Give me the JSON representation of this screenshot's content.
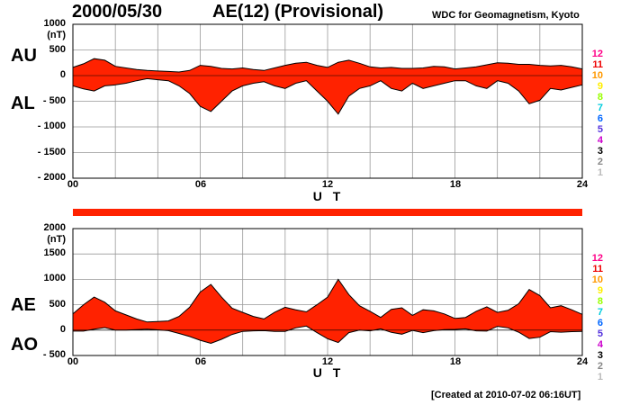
{
  "header": {
    "date": "2000/05/30",
    "title": "AE(12) (Provisional)",
    "source": "WDC for Geomagnetism, Kyoto"
  },
  "footer": {
    "created": "[Created at 2010-07-02 06:16UT]"
  },
  "colors": {
    "fill": "#ff2200",
    "grid": "#999999",
    "bar": "#ff2200",
    "station_counts": [
      "#ff0088",
      "#ee0000",
      "#ff9900",
      "#ffee00",
      "#99ff00",
      "#00ccdd",
      "#0066ff",
      "#5533dd",
      "#cc00cc",
      "#000000",
      "#888888",
      "#bbbbbb"
    ]
  },
  "station_counts": [
    "12",
    "11",
    "10",
    "9",
    "8",
    "7",
    "6",
    "5",
    "4",
    "3",
    "2",
    "1"
  ],
  "chart_data": [
    {
      "type": "area",
      "name": "AU/AL",
      "side_labels": [
        "AU",
        "AL"
      ],
      "unit": "(nT)",
      "ylim": [
        -2000,
        1000
      ],
      "yticks": [
        1000,
        500,
        0,
        -500,
        -1000,
        -1500,
        -2000
      ],
      "ytick_labels": [
        "1000",
        "500",
        "0",
        "- 500",
        "- 1000",
        "- 1500",
        "- 2000"
      ],
      "xlim": [
        0,
        24
      ],
      "xticks": [
        "00",
        "06",
        "12",
        "18",
        "24"
      ],
      "xlabel": "U T",
      "grid": true,
      "x": [
        0,
        0.5,
        1,
        1.5,
        2,
        2.5,
        3,
        3.5,
        4,
        4.5,
        5,
        5.5,
        6,
        6.5,
        7,
        7.5,
        8,
        8.5,
        9,
        9.5,
        10,
        10.5,
        11,
        11.5,
        12,
        12.5,
        13,
        13.5,
        14,
        14.5,
        15,
        15.5,
        16,
        16.5,
        17,
        17.5,
        18,
        18.5,
        19,
        19.5,
        20,
        20.5,
        21,
        21.5,
        22,
        22.5,
        23,
        23.5,
        24
      ],
      "series": [
        {
          "name": "AU",
          "values": [
            160,
            230,
            330,
            300,
            180,
            150,
            120,
            100,
            90,
            80,
            70,
            100,
            200,
            180,
            140,
            130,
            150,
            120,
            100,
            150,
            200,
            240,
            260,
            200,
            160,
            260,
            300,
            240,
            170,
            150,
            160,
            140,
            140,
            150,
            180,
            170,
            130,
            150,
            170,
            210,
            250,
            240,
            220,
            220,
            200,
            190,
            200,
            170,
            130
          ]
        },
        {
          "name": "AL",
          "values": [
            -200,
            -260,
            -300,
            -200,
            -180,
            -150,
            -100,
            -60,
            -80,
            -100,
            -200,
            -350,
            -600,
            -700,
            -500,
            -300,
            -200,
            -150,
            -120,
            -200,
            -250,
            -150,
            -100,
            -300,
            -500,
            -750,
            -400,
            -250,
            -200,
            -100,
            -250,
            -300,
            -150,
            -250,
            -200,
            -150,
            -100,
            -100,
            -200,
            -250,
            -100,
            -150,
            -300,
            -550,
            -480,
            -250,
            -280,
            -230,
            -180
          ]
        }
      ]
    },
    {
      "type": "area",
      "name": "AE/AO",
      "side_labels": [
        "AE",
        "AO"
      ],
      "unit": "(nT)",
      "ylim": [
        -500,
        2000
      ],
      "yticks": [
        2000,
        1500,
        1000,
        500,
        0,
        -500
      ],
      "ytick_labels": [
        "2000",
        "1500",
        "1000",
        "500",
        "0",
        "- 500"
      ],
      "xlim": [
        0,
        24
      ],
      "xticks": [
        "00",
        "06",
        "12",
        "18",
        "24"
      ],
      "xlabel": "U T",
      "grid": true,
      "x": [
        0,
        0.5,
        1,
        1.5,
        2,
        2.5,
        3,
        3.5,
        4,
        4.5,
        5,
        5.5,
        6,
        6.5,
        7,
        7.5,
        8,
        8.5,
        9,
        9.5,
        10,
        10.5,
        11,
        11.5,
        12,
        12.5,
        13,
        13.5,
        14,
        14.5,
        15,
        15.5,
        16,
        16.5,
        17,
        17.5,
        18,
        18.5,
        19,
        19.5,
        20,
        20.5,
        21,
        21.5,
        22,
        22.5,
        23,
        23.5,
        24
      ],
      "series": [
        {
          "name": "AE",
          "values": [
            320,
            500,
            650,
            550,
            380,
            300,
            220,
            160,
            170,
            180,
            270,
            450,
            750,
            900,
            650,
            430,
            350,
            270,
            220,
            350,
            450,
            400,
            360,
            500,
            650,
            1000,
            700,
            480,
            370,
            250,
            410,
            440,
            290,
            400,
            380,
            320,
            230,
            250,
            370,
            460,
            350,
            390,
            520,
            800,
            680,
            440,
            480,
            400,
            310
          ]
        },
        {
          "name": "AO",
          "values": [
            -20,
            -20,
            20,
            50,
            0,
            0,
            10,
            20,
            5,
            -10,
            -65,
            -125,
            -200,
            -260,
            -180,
            -85,
            -25,
            -15,
            -10,
            -25,
            -25,
            45,
            80,
            -50,
            -170,
            -245,
            -50,
            0,
            -15,
            25,
            -45,
            -80,
            -5,
            -50,
            -10,
            10,
            15,
            25,
            -15,
            -20,
            75,
            45,
            -40,
            -165,
            -140,
            -30,
            -40,
            -30,
            -25
          ]
        }
      ]
    }
  ]
}
